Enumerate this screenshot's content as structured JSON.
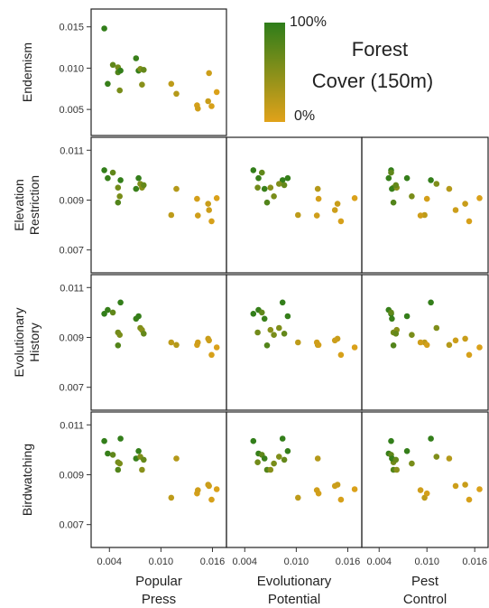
{
  "chart_data": {
    "type": "scatter",
    "layout": "lower-triangle scatterplot matrix",
    "x_vars": [
      "Popular Press",
      "Evolutionary Potential",
      "Pest Control"
    ],
    "y_vars": [
      "Endemism",
      "Elevation Restriction",
      "Evolutionary History",
      "Birdwatching"
    ],
    "x_ticks": [
      "0.004",
      "0.010",
      "0.016"
    ],
    "x_tick_values": [
      0.004,
      0.01,
      0.016
    ],
    "xlim": [
      0.0025,
      0.017
    ],
    "y_ticks": {
      "Endemism": {
        "labels": [
          "0.015",
          "0.010",
          "0.005"
        ],
        "values": [
          0.015,
          0.01,
          0.005
        ],
        "ylim": [
          0.0025,
          0.0165
        ]
      },
      "Elevation Restriction": {
        "labels": [
          "0.011",
          "0.009",
          "0.007"
        ],
        "values": [
          0.011,
          0.009,
          0.007
        ],
        "ylim": [
          0.0063,
          0.0113
        ]
      },
      "Evolutionary History": {
        "labels": [
          "0.011",
          "0.009",
          "0.007"
        ],
        "values": [
          0.011,
          0.009,
          0.007
        ],
        "ylim": [
          0.0063,
          0.0113
        ]
      },
      "Birdwatching": {
        "labels": [
          "0.011",
          "0.009",
          "0.007"
        ],
        "values": [
          0.011,
          0.009,
          0.007
        ],
        "ylim": [
          0.0063,
          0.0113
        ]
      }
    },
    "color_scale": {
      "low": "#E1A21A",
      "high": "#2E7D1A",
      "title": "Forest Cover (150m)",
      "max_label": "100%",
      "min_label": "0%"
    },
    "point_color": "forest_cover",
    "grid": false,
    "legend_position": "top-right (empty upper-triangle area)",
    "points": [
      {
        "popular_press": 0.0034,
        "evolutionary_potential": 0.005,
        "pest_control": 0.0055,
        "endemism": 0.0148,
        "elevation_restriction": 0.0102,
        "evolutionary_history": 0.00995,
        "birdwatching": 0.01035,
        "forest_cover": 0.98
      },
      {
        "popular_press": 0.0038,
        "evolutionary_potential": 0.0056,
        "pest_control": 0.0052,
        "endemism": 0.0081,
        "elevation_restriction": 0.00988,
        "evolutionary_history": 0.0101,
        "birdwatching": 0.00985,
        "forest_cover": 0.95
      },
      {
        "popular_press": 0.0044,
        "evolutionary_potential": 0.006,
        "pest_control": 0.0055,
        "endemism": 0.0104,
        "elevation_restriction": 0.0101,
        "evolutionary_history": 0.01,
        "birdwatching": 0.0098,
        "forest_cover": 0.72
      },
      {
        "popular_press": 0.005,
        "evolutionary_potential": 0.0055,
        "pest_control": 0.0058,
        "endemism": 0.0101,
        "elevation_restriction": 0.0095,
        "evolutionary_history": 0.0092,
        "birdwatching": 0.0095,
        "forest_cover": 0.62
      },
      {
        "popular_press": 0.0052,
        "evolutionary_potential": 0.0074,
        "pest_control": 0.0081,
        "endemism": 0.0073,
        "elevation_restriction": 0.00915,
        "evolutionary_history": 0.0091,
        "birdwatching": 0.00945,
        "forest_cover": 0.58
      },
      {
        "popular_press": 0.005,
        "evolutionary_potential": 0.0066,
        "pest_control": 0.0058,
        "endemism": 0.0095,
        "elevation_restriction": 0.0089,
        "evolutionary_history": 0.00868,
        "birdwatching": 0.0092,
        "forest_cover": 0.8
      },
      {
        "popular_press": 0.0053,
        "evolutionary_potential": 0.0084,
        "pest_control": 0.0105,
        "endemism": 0.0097,
        "elevation_restriction": 0.0098,
        "evolutionary_history": 0.0104,
        "birdwatching": 0.01045,
        "forest_cover": 0.97
      },
      {
        "popular_press": 0.0071,
        "evolutionary_potential": 0.0063,
        "pest_control": 0.0056,
        "endemism": 0.0112,
        "elevation_restriction": 0.00945,
        "evolutionary_history": 0.00975,
        "birdwatching": 0.00965,
        "forest_cover": 0.94
      },
      {
        "popular_press": 0.0074,
        "evolutionary_potential": 0.009,
        "pest_control": 0.0075,
        "endemism": 0.0097,
        "elevation_restriction": 0.00988,
        "evolutionary_history": 0.00985,
        "birdwatching": 0.00995,
        "forest_cover": 0.96
      },
      {
        "popular_press": 0.0076,
        "evolutionary_potential": 0.008,
        "pest_control": 0.0112,
        "endemism": 0.0099,
        "elevation_restriction": 0.00965,
        "evolutionary_history": 0.00938,
        "birdwatching": 0.00972,
        "forest_cover": 0.55
      },
      {
        "popular_press": 0.0078,
        "evolutionary_potential": 0.007,
        "pest_control": 0.0062,
        "endemism": 0.008,
        "elevation_restriction": 0.0095,
        "evolutionary_history": 0.0093,
        "birdwatching": 0.0092,
        "forest_cover": 0.5
      },
      {
        "popular_press": 0.008,
        "evolutionary_potential": 0.0086,
        "pest_control": 0.0061,
        "endemism": 0.0098,
        "elevation_restriction": 0.0096,
        "evolutionary_history": 0.00915,
        "birdwatching": 0.0096,
        "forest_cover": 0.7
      },
      {
        "popular_press": 0.0112,
        "evolutionary_potential": 0.0102,
        "pest_control": 0.0097,
        "endemism": 0.0081,
        "elevation_restriction": 0.0084,
        "evolutionary_history": 0.0088,
        "birdwatching": 0.00808,
        "forest_cover": 0.2
      },
      {
        "popular_press": 0.0118,
        "evolutionary_potential": 0.0125,
        "pest_control": 0.0128,
        "endemism": 0.0069,
        "elevation_restriction": 0.00945,
        "evolutionary_history": 0.0087,
        "birdwatching": 0.00965,
        "forest_cover": 0.25
      },
      {
        "popular_press": 0.0142,
        "evolutionary_potential": 0.0126,
        "pest_control": 0.01,
        "endemism": 0.0055,
        "elevation_restriction": 0.00905,
        "evolutionary_history": 0.0087,
        "birdwatching": 0.00825,
        "forest_cover": 0.08
      },
      {
        "popular_press": 0.0143,
        "evolutionary_potential": 0.0124,
        "pest_control": 0.0092,
        "endemism": 0.0051,
        "elevation_restriction": 0.00838,
        "evolutionary_history": 0.0088,
        "birdwatching": 0.00838,
        "forest_cover": 0.1
      },
      {
        "popular_press": 0.0155,
        "evolutionary_potential": 0.0148,
        "pest_control": 0.0148,
        "endemism": 0.006,
        "elevation_restriction": 0.00885,
        "evolutionary_history": 0.00895,
        "birdwatching": 0.0086,
        "forest_cover": 0.14
      },
      {
        "popular_press": 0.0156,
        "evolutionary_potential": 0.0145,
        "pest_control": 0.0136,
        "endemism": 0.0094,
        "elevation_restriction": 0.0086,
        "evolutionary_history": 0.00888,
        "birdwatching": 0.00855,
        "forest_cover": 0.12
      },
      {
        "popular_press": 0.0159,
        "evolutionary_potential": 0.0152,
        "pest_control": 0.0153,
        "endemism": 0.0054,
        "elevation_restriction": 0.00815,
        "evolutionary_history": 0.0083,
        "birdwatching": 0.008,
        "forest_cover": 0.06
      },
      {
        "popular_press": 0.0165,
        "evolutionary_potential": 0.0168,
        "pest_control": 0.0166,
        "endemism": 0.0071,
        "elevation_restriction": 0.00908,
        "evolutionary_history": 0.0086,
        "birdwatching": 0.00842,
        "forest_cover": 0.04
      }
    ]
  }
}
